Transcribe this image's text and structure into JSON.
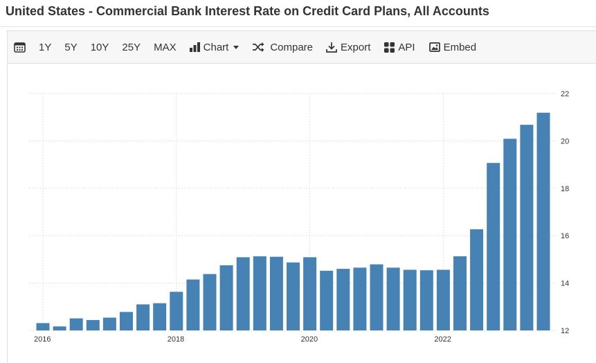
{
  "page": {
    "title": "United States - Commercial Bank Interest Rate on Credit Card Plans, All Accounts"
  },
  "toolbar": {
    "range_buttons": [
      "1Y",
      "5Y",
      "10Y",
      "25Y",
      "MAX"
    ],
    "chart_label": "Chart",
    "compare_label": "Compare",
    "export_label": "Export",
    "api_label": "API",
    "embed_label": "Embed"
  },
  "chart_data": {
    "type": "bar",
    "color": "#4682b4",
    "grid": true,
    "y_axis_side": "right",
    "ylim": [
      12,
      22
    ],
    "y_ticks": [
      12,
      14,
      16,
      18,
      20,
      22
    ],
    "x_tick_labels": [
      "2016",
      "2018",
      "2020",
      "2022"
    ],
    "x_tick_bar_index": [
      0,
      8,
      16,
      24
    ],
    "values": [
      12.31,
      12.17,
      12.51,
      12.44,
      12.54,
      12.78,
      13.1,
      13.15,
      13.63,
      14.15,
      14.38,
      14.75,
      15.09,
      15.13,
      15.11,
      14.87,
      15.09,
      14.52,
      14.6,
      14.65,
      14.79,
      14.65,
      14.56,
      14.54,
      14.56,
      15.13,
      16.27,
      19.07,
      20.09,
      20.68,
      21.19
    ]
  }
}
